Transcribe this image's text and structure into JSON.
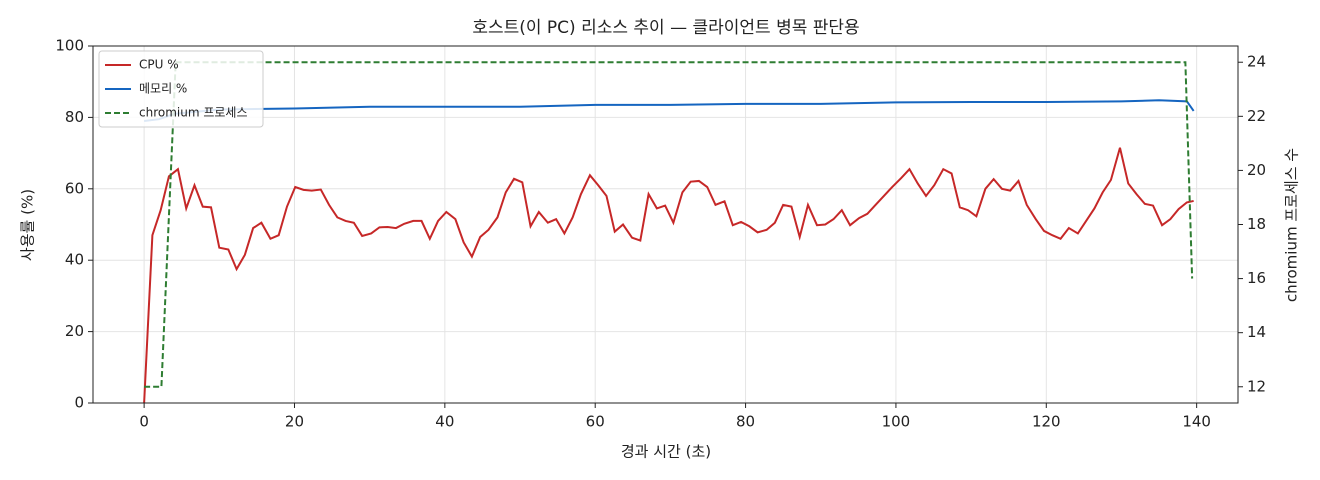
{
  "chart_data": {
    "type": "line",
    "title": "호스트(이 PC) 리소스 추이 — 클라이언트 병목 판단용",
    "x_label": "경과 시간 (초)",
    "y_label": "사용률 (%)",
    "y2_label": "chromium 프로세스 수",
    "xlim": [
      -6.8,
      145.5
    ],
    "xticks": [
      0,
      20,
      40,
      60,
      80,
      100,
      120,
      140
    ],
    "ylim": [
      0,
      100
    ],
    "yticks": [
      0,
      20,
      40,
      60,
      80,
      100
    ],
    "y2lim": [
      11.4,
      24.6
    ],
    "y2ticks": [
      12,
      14,
      16,
      18,
      20,
      22,
      24
    ],
    "grid": true,
    "legend": "upper-left",
    "series": [
      {
        "name": "CPU %",
        "color": "#c62828",
        "style": "solid",
        "x": [
          0,
          1.1,
          2.2,
          3.3,
          4.5,
          5.6,
          6.7,
          7.8,
          8.9,
          10,
          11.2,
          12.3,
          13.4,
          14.5,
          15.6,
          16.8,
          17.9,
          19,
          20.1,
          21.2,
          22.3,
          23.5,
          24.6,
          25.7,
          26.8,
          27.9,
          29,
          30.2,
          31.3,
          32.4,
          33.5,
          34.6,
          35.8,
          36.9,
          38,
          39.1,
          40.2,
          41.4,
          42.5,
          43.6,
          44.7,
          45.8,
          47,
          48.1,
          49.2,
          50.3,
          51.4,
          52.5,
          53.7,
          54.8,
          55.9,
          57,
          58.1,
          59.3,
          60.4,
          61.5,
          62.6,
          63.7,
          64.9,
          66,
          67.1,
          68.2,
          69.3,
          70.4,
          71.6,
          72.7,
          73.8,
          74.9,
          76,
          77.2,
          78.3,
          79.4,
          80.5,
          81.6,
          82.8,
          83.9,
          85,
          86.1,
          87.2,
          88.3,
          89.5,
          90.6,
          91.7,
          92.8,
          93.9,
          95.1,
          96.2,
          97.3,
          98.4,
          99.5,
          100.7,
          101.8,
          102.9,
          104,
          105.1,
          106.3,
          107.4,
          108.5,
          109.6,
          110.7,
          111.9,
          113,
          114.1,
          115.2,
          116.3,
          117.4,
          118.6,
          119.7,
          120.8,
          121.9,
          123,
          124.2,
          125.3,
          126.4,
          127.5,
          128.6,
          129.8,
          130.9,
          132,
          133.1,
          134.2,
          135.4,
          136.5,
          137.6,
          138.7,
          139.6
        ],
        "values": [
          0,
          47,
          54,
          63.5,
          65.5,
          54.5,
          61,
          55,
          54.8,
          43.5,
          43,
          37.5,
          41.5,
          49,
          50.5,
          46,
          47,
          55,
          60.5,
          59.7,
          59.5,
          59.8,
          55.5,
          52,
          51,
          50.5,
          46.8,
          47.5,
          49.2,
          49.3,
          49,
          50.2,
          51,
          51,
          46,
          51,
          53.5,
          51.5,
          45,
          41,
          46.5,
          48.5,
          52,
          59,
          62.8,
          61.8,
          49.5,
          53.5,
          50.5,
          51.5,
          47.5,
          52,
          58.5,
          63.8,
          61,
          58,
          48,
          50,
          46.3,
          45.5,
          58.5,
          54.5,
          55.3,
          50.5,
          59,
          62,
          62.2,
          60.5,
          55.5,
          56.5,
          49.8,
          50.7,
          49.5,
          47.8,
          48.5,
          50.5,
          55.5,
          55,
          46.5,
          55.5,
          49.8,
          50,
          51.5,
          54,
          49.8,
          51.8,
          53,
          55.5,
          58,
          60.5,
          63,
          65.5,
          61.5,
          58,
          61,
          65.5,
          64.3,
          54.8,
          54,
          52.3,
          60,
          62.7,
          60,
          59.5,
          62.2,
          55.5,
          51.5,
          48.2,
          47,
          46,
          49,
          47.5,
          51,
          54.5,
          59,
          62.5,
          71.5,
          61.5,
          58.5,
          55.8,
          55.3,
          49.8,
          51.5,
          54.3,
          56.2,
          56.6
        ]
      },
      {
        "name": "메모리 %",
        "color": "#1565c0",
        "style": "solid",
        "x": [
          0,
          2,
          4,
          10,
          20,
          30,
          40,
          50,
          60,
          70,
          80,
          90,
          100,
          110,
          120,
          130,
          135,
          138.7,
          139.6
        ],
        "values": [
          79,
          79.5,
          81,
          82.2,
          82.5,
          83,
          83,
          83,
          83.5,
          83.5,
          83.8,
          83.8,
          84.2,
          84.3,
          84.3,
          84.5,
          84.8,
          84.5,
          81.8
        ]
      },
      {
        "name": "chromium 프로세스",
        "color": "#2e7d32",
        "style": "dashed",
        "axis": "y2",
        "x": [
          0,
          2.3,
          4.2,
          138.5,
          139.4
        ],
        "values": [
          12,
          12,
          24,
          24,
          16
        ]
      }
    ]
  }
}
